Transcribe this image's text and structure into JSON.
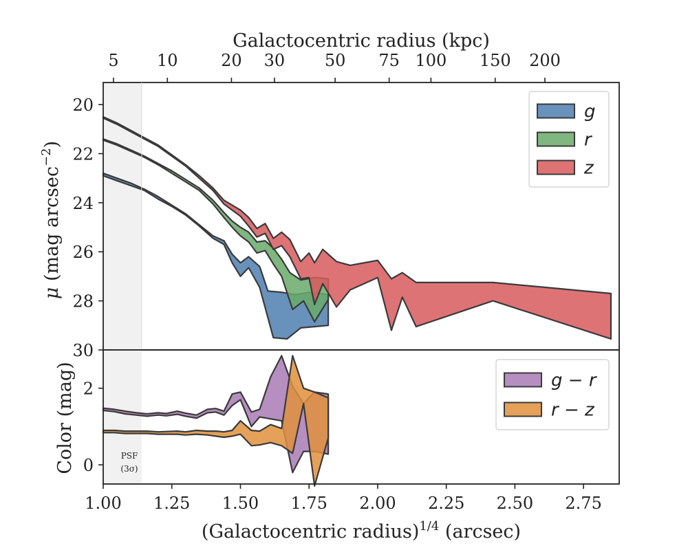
{
  "chart_data": [
    {
      "type": "area",
      "panel": "surface-brightness",
      "top_axis_label": "Galactocentric radius (kpc)",
      "top_ticks": [
        "5",
        "10",
        "20",
        "30",
        "50",
        "75",
        "100",
        "150",
        "200"
      ],
      "top_tick_values_kpc": [
        5,
        10,
        20,
        30,
        50,
        75,
        100,
        150,
        200
      ],
      "ylabel": "μ (mag arcsec⁻²)",
      "ylim": [
        30,
        19.1
      ],
      "yticks": [
        "20",
        "22",
        "24",
        "26",
        "28",
        "30"
      ],
      "ytick_values": [
        20,
        22,
        24,
        26,
        28,
        30
      ],
      "xlim": [
        1.0,
        2.88
      ],
      "legend_position": "top-right",
      "shaded_region": {
        "x_range": [
          1.0,
          1.14
        ]
      },
      "series": [
        {
          "name": "g",
          "color": "#4e7fb0",
          "upper": [
            [
              1.0,
              22.8
            ],
            [
              1.05,
              23.0
            ],
            [
              1.1,
              23.2
            ],
            [
              1.15,
              23.45
            ],
            [
              1.2,
              23.75
            ],
            [
              1.25,
              24.1
            ],
            [
              1.3,
              24.45
            ],
            [
              1.35,
              24.9
            ],
            [
              1.4,
              25.35
            ],
            [
              1.44,
              25.55
            ],
            [
              1.47,
              26.1
            ],
            [
              1.5,
              26.45
            ],
            [
              1.53,
              26.2
            ],
            [
              1.57,
              26.6
            ],
            [
              1.6,
              27.6
            ],
            [
              1.65,
              27.65
            ],
            [
              1.7,
              27.75
            ],
            [
              1.75,
              27.65
            ],
            [
              1.79,
              27.7
            ],
            [
              1.82,
              27.75
            ]
          ],
          "lower": [
            [
              1.0,
              22.9
            ],
            [
              1.05,
              23.1
            ],
            [
              1.1,
              23.3
            ],
            [
              1.15,
              23.5
            ],
            [
              1.2,
              23.85
            ],
            [
              1.25,
              24.15
            ],
            [
              1.3,
              24.5
            ],
            [
              1.35,
              24.95
            ],
            [
              1.4,
              25.45
            ],
            [
              1.44,
              25.7
            ],
            [
              1.47,
              26.45
            ],
            [
              1.5,
              27.0
            ],
            [
              1.53,
              26.65
            ],
            [
              1.57,
              27.45
            ],
            [
              1.62,
              29.5
            ],
            [
              1.67,
              29.55
            ],
            [
              1.72,
              29.1
            ],
            [
              1.77,
              29.05
            ],
            [
              1.82,
              29.0
            ]
          ]
        },
        {
          "name": "r",
          "color": "#6aaa6a",
          "upper": [
            [
              1.0,
              21.4
            ],
            [
              1.05,
              21.6
            ],
            [
              1.1,
              21.85
            ],
            [
              1.15,
              22.1
            ],
            [
              1.2,
              22.4
            ],
            [
              1.25,
              22.7
            ],
            [
              1.3,
              23.05
            ],
            [
              1.35,
              23.4
            ],
            [
              1.4,
              23.9
            ],
            [
              1.44,
              24.4
            ],
            [
              1.47,
              24.75
            ],
            [
              1.5,
              25.0
            ],
            [
              1.53,
              25.2
            ],
            [
              1.56,
              25.6
            ],
            [
              1.59,
              25.55
            ],
            [
              1.62,
              25.85
            ],
            [
              1.65,
              26.3
            ],
            [
              1.68,
              26.85
            ],
            [
              1.72,
              27.15
            ],
            [
              1.77,
              27.05
            ],
            [
              1.82,
              27.1
            ]
          ],
          "lower": [
            [
              1.0,
              21.45
            ],
            [
              1.05,
              21.65
            ],
            [
              1.1,
              21.9
            ],
            [
              1.15,
              22.15
            ],
            [
              1.2,
              22.45
            ],
            [
              1.25,
              22.8
            ],
            [
              1.3,
              23.15
            ],
            [
              1.35,
              23.5
            ],
            [
              1.4,
              24.05
            ],
            [
              1.44,
              24.6
            ],
            [
              1.47,
              25.0
            ],
            [
              1.5,
              25.35
            ],
            [
              1.53,
              25.6
            ],
            [
              1.56,
              26.05
            ],
            [
              1.59,
              25.95
            ],
            [
              1.62,
              26.5
            ],
            [
              1.65,
              27.0
            ],
            [
              1.69,
              28.35
            ],
            [
              1.73,
              28.0
            ],
            [
              1.77,
              28.85
            ],
            [
              1.82,
              27.95
            ]
          ]
        },
        {
          "name": "z",
          "color": "#d85a5e",
          "upper": [
            [
              1.0,
              20.5
            ],
            [
              1.05,
              20.75
            ],
            [
              1.1,
              21.05
            ],
            [
              1.15,
              21.35
            ],
            [
              1.2,
              21.65
            ],
            [
              1.25,
              22.05
            ],
            [
              1.3,
              22.45
            ],
            [
              1.35,
              22.9
            ],
            [
              1.4,
              23.4
            ],
            [
              1.44,
              23.9
            ],
            [
              1.47,
              24.1
            ],
            [
              1.5,
              24.3
            ],
            [
              1.53,
              24.6
            ],
            [
              1.56,
              25.05
            ],
            [
              1.59,
              24.85
            ],
            [
              1.62,
              25.45
            ],
            [
              1.65,
              25.2
            ],
            [
              1.68,
              25.5
            ],
            [
              1.72,
              26.4
            ],
            [
              1.75,
              26.05
            ],
            [
              1.77,
              26.45
            ],
            [
              1.8,
              25.9
            ],
            [
              1.85,
              26.4
            ],
            [
              1.9,
              26.55
            ],
            [
              2.0,
              26.35
            ],
            [
              2.05,
              27.1
            ],
            [
              2.09,
              26.85
            ],
            [
              2.14,
              27.25
            ],
            [
              2.42,
              27.25
            ],
            [
              2.85,
              27.7
            ]
          ],
          "lower": [
            [
              1.0,
              20.55
            ],
            [
              1.05,
              20.8
            ],
            [
              1.1,
              21.1
            ],
            [
              1.15,
              21.4
            ],
            [
              1.2,
              21.7
            ],
            [
              1.25,
              22.1
            ],
            [
              1.3,
              22.5
            ],
            [
              1.35,
              23.0
            ],
            [
              1.4,
              23.5
            ],
            [
              1.44,
              24.05
            ],
            [
              1.47,
              24.3
            ],
            [
              1.5,
              24.55
            ],
            [
              1.53,
              24.95
            ],
            [
              1.56,
              25.4
            ],
            [
              1.59,
              25.25
            ],
            [
              1.62,
              25.9
            ],
            [
              1.65,
              25.75
            ],
            [
              1.68,
              26.2
            ],
            [
              1.72,
              27.1
            ],
            [
              1.75,
              27.05
            ],
            [
              1.77,
              28.15
            ],
            [
              1.8,
              27.3
            ],
            [
              1.85,
              28.25
            ],
            [
              1.9,
              27.55
            ],
            [
              2.0,
              27.05
            ],
            [
              2.05,
              29.2
            ],
            [
              2.09,
              27.85
            ],
            [
              2.14,
              29.05
            ],
            [
              2.42,
              28.0
            ],
            [
              2.85,
              29.55
            ]
          ]
        }
      ]
    },
    {
      "type": "area",
      "panel": "color",
      "xlabel": "(Galactocentric radius)^1/4 (arcsec)",
      "xlabel_base": "(Galactocentric radius)",
      "xlabel_exp": "1/4",
      "xlabel_unit": "(arcsec)",
      "ylabel": "Color (mag)",
      "ylim": [
        -0.5,
        3.0
      ],
      "yticks": [
        "0",
        "2"
      ],
      "ytick_values": [
        0,
        2
      ],
      "xlim": [
        1.0,
        2.88
      ],
      "xticks": [
        "1.00",
        "1.25",
        "1.50",
        "1.75",
        "2.00",
        "2.25",
        "2.50",
        "2.75"
      ],
      "xtick_values": [
        1.0,
        1.25,
        1.5,
        1.75,
        2.0,
        2.25,
        2.5,
        2.75
      ],
      "legend_position": "top-right",
      "annotation_line1": "PSF",
      "annotation_line2": "(3σ)",
      "series": [
        {
          "name": "g − r",
          "color": "#a97ab5",
          "upper": [
            [
              1.0,
              1.48
            ],
            [
              1.04,
              1.45
            ],
            [
              1.08,
              1.4
            ],
            [
              1.12,
              1.36
            ],
            [
              1.16,
              1.33
            ],
            [
              1.2,
              1.36
            ],
            [
              1.23,
              1.34
            ],
            [
              1.27,
              1.4
            ],
            [
              1.3,
              1.35
            ],
            [
              1.34,
              1.3
            ],
            [
              1.38,
              1.45
            ],
            [
              1.41,
              1.47
            ],
            [
              1.44,
              1.4
            ],
            [
              1.47,
              1.85
            ],
            [
              1.5,
              1.9
            ],
            [
              1.54,
              1.38
            ],
            [
              1.57,
              1.45
            ],
            [
              1.61,
              2.3
            ],
            [
              1.65,
              2.85
            ],
            [
              1.69,
              2.05
            ],
            [
              1.73,
              1.6
            ],
            [
              1.77,
              1.9
            ],
            [
              1.82,
              1.85
            ]
          ],
          "lower": [
            [
              1.0,
              1.42
            ],
            [
              1.04,
              1.39
            ],
            [
              1.08,
              1.33
            ],
            [
              1.12,
              1.3
            ],
            [
              1.16,
              1.27
            ],
            [
              1.2,
              1.3
            ],
            [
              1.23,
              1.28
            ],
            [
              1.27,
              1.32
            ],
            [
              1.3,
              1.27
            ],
            [
              1.34,
              1.22
            ],
            [
              1.38,
              1.36
            ],
            [
              1.41,
              1.38
            ],
            [
              1.44,
              1.3
            ],
            [
              1.47,
              1.55
            ],
            [
              1.5,
              1.7
            ],
            [
              1.54,
              1.0
            ],
            [
              1.57,
              1.25
            ],
            [
              1.61,
              1.2
            ],
            [
              1.65,
              1.15
            ],
            [
              1.69,
              -0.2
            ],
            [
              1.73,
              0.35
            ],
            [
              1.77,
              0.35
            ],
            [
              1.82,
              0.28
            ]
          ]
        },
        {
          "name": "r − z",
          "color": "#e0913c",
          "upper": [
            [
              1.0,
              0.9
            ],
            [
              1.04,
              0.9
            ],
            [
              1.08,
              0.88
            ],
            [
              1.12,
              0.88
            ],
            [
              1.16,
              0.88
            ],
            [
              1.2,
              0.86
            ],
            [
              1.23,
              0.87
            ],
            [
              1.27,
              0.88
            ],
            [
              1.3,
              0.86
            ],
            [
              1.34,
              0.9
            ],
            [
              1.38,
              0.88
            ],
            [
              1.41,
              0.88
            ],
            [
              1.44,
              0.86
            ],
            [
              1.47,
              0.9
            ],
            [
              1.5,
              1.15
            ],
            [
              1.54,
              0.9
            ],
            [
              1.57,
              0.88
            ],
            [
              1.61,
              1.05
            ],
            [
              1.65,
              0.95
            ],
            [
              1.69,
              2.85
            ],
            [
              1.73,
              2.0
            ],
            [
              1.77,
              1.9
            ],
            [
              1.82,
              1.75
            ]
          ],
          "lower": [
            [
              1.0,
              0.84
            ],
            [
              1.04,
              0.84
            ],
            [
              1.08,
              0.82
            ],
            [
              1.12,
              0.82
            ],
            [
              1.16,
              0.82
            ],
            [
              1.2,
              0.8
            ],
            [
              1.23,
              0.8
            ],
            [
              1.27,
              0.8
            ],
            [
              1.3,
              0.78
            ],
            [
              1.34,
              0.8
            ],
            [
              1.38,
              0.78
            ],
            [
              1.41,
              0.75
            ],
            [
              1.44,
              0.72
            ],
            [
              1.47,
              0.75
            ],
            [
              1.5,
              0.8
            ],
            [
              1.54,
              0.5
            ],
            [
              1.57,
              0.52
            ],
            [
              1.61,
              0.58
            ],
            [
              1.65,
              0.5
            ],
            [
              1.69,
              0.3
            ],
            [
              1.73,
              1.6
            ],
            [
              1.77,
              -0.55
            ],
            [
              1.82,
              0.7
            ]
          ]
        }
      ]
    }
  ]
}
